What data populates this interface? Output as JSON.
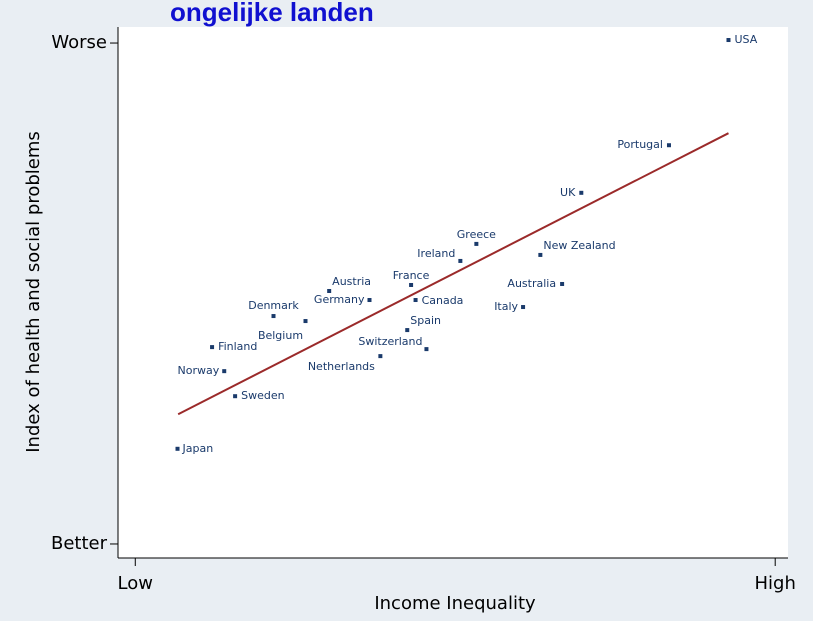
{
  "chart_data": {
    "type": "scatter",
    "title": "ongelijke landen",
    "x_label": "Income Inequality",
    "y_label": "Index of health and social problems",
    "xlim": [
      -2.7,
      102
    ],
    "ylim": [
      -2.8,
      103.2
    ],
    "xticks": [
      {
        "value": 0,
        "label": "Low"
      },
      {
        "value": 100,
        "label": "High"
      }
    ],
    "yticks": [
      {
        "value": 0,
        "label": "Better"
      },
      {
        "value": 100,
        "label": "Worse"
      }
    ],
    "color": "#1a3a6b",
    "points": {
      "labels": [
        "USA",
        "Portugal",
        "UK",
        "New Zealand",
        "Greece",
        "Ireland",
        "Australia",
        "France",
        "Austria",
        "Germany",
        "Canada",
        "Italy",
        "Denmark",
        "Belgium",
        "Spain",
        "Switzerland",
        "Netherlands",
        "Finland",
        "Norway",
        "Sweden",
        "Japan"
      ],
      "x": [
        92.7,
        83.4,
        69.7,
        63.3,
        53.3,
        50.8,
        66.7,
        43.1,
        30.3,
        36.6,
        43.8,
        60.6,
        21.6,
        26.6,
        42.5,
        45.5,
        38.3,
        12.0,
        13.9,
        15.6,
        6.6
      ],
      "y": [
        100.6,
        79.6,
        70.1,
        57.7,
        59.9,
        56.5,
        51.9,
        51.7,
        50.5,
        48.7,
        48.7,
        47.3,
        45.5,
        44.5,
        42.7,
        38.9,
        37.5,
        39.3,
        34.5,
        29.5,
        19.0
      ]
    },
    "fit_line": {
      "color": "#9b2a2a",
      "x": [
        6.7,
        92.7
      ],
      "y": [
        25.9,
        82.0
      ]
    }
  }
}
